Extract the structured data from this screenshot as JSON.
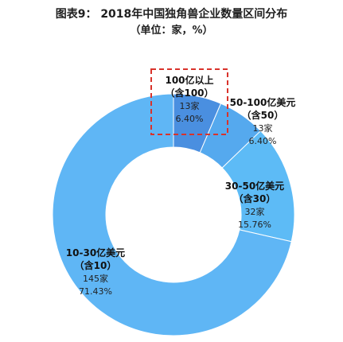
{
  "header": {
    "title": "图表9： 2018年中国独角兽企业数量区间分布",
    "subtitle": "（单位：家，%）"
  },
  "chart_data": {
    "type": "pie",
    "title": "图表9： 2018年中国独角兽企业数量区间分布",
    "subtitle": "（单位：家，%）",
    "donut": true,
    "slices": [
      {
        "label_line1": "100亿以上",
        "label_line2": "（含100）",
        "count": "13家",
        "percent": "6.40%",
        "value": 6.4,
        "color": "#4a8fe0",
        "highlighted": true
      },
      {
        "label_line1": "50-100亿美元",
        "label_line2": "（含50）",
        "count": "13家",
        "percent": "6.40%",
        "value": 6.4,
        "color": "#55a9ee",
        "highlighted": false
      },
      {
        "label_line1": "30-50亿美元",
        "label_line2": "（含30）",
        "count": "32家",
        "percent": "15.76%",
        "value": 15.76,
        "color": "#5dbbf6",
        "highlighted": false
      },
      {
        "label_line1": "10-30亿美元",
        "label_line2": "（含10）",
        "count": "145家",
        "percent": "71.43%",
        "value": 71.43,
        "color": "#5fb6f5",
        "highlighted": false
      }
    ],
    "highlight_color": "#d9332b"
  }
}
